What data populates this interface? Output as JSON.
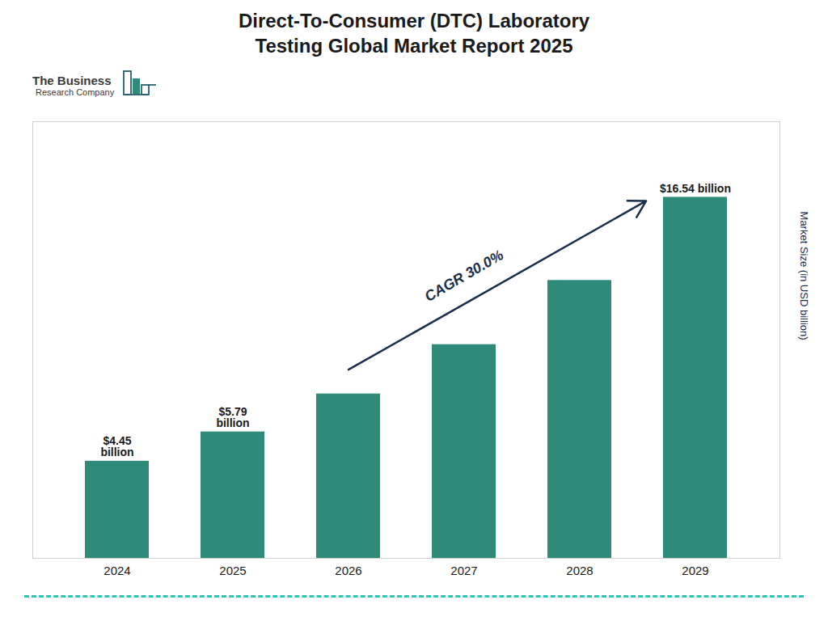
{
  "chart_data": {
    "type": "bar",
    "title": "Direct-To-Consumer (DTC) Laboratory\nTesting Global Market Report 2025",
    "categories": [
      "2024",
      "2025",
      "2026",
      "2027",
      "2028",
      "2029"
    ],
    "values": [
      4.45,
      5.79,
      7.53,
      9.79,
      12.73,
      16.54
    ],
    "color": "#2E8B7A",
    "ylabel": "Market Size (in USD billion)",
    "ylim": [
      0,
      20
    ],
    "tick_labels": "x",
    "grid": false,
    "data_labels": true,
    "value_labels": [
      "$4.45\nbillion",
      "$5.79\nbillion",
      null,
      null,
      null,
      "$16.54 billion"
    ],
    "annotations": [
      "CAGR 30.0%",
      "The Business",
      "Research Company"
    ]
  }
}
